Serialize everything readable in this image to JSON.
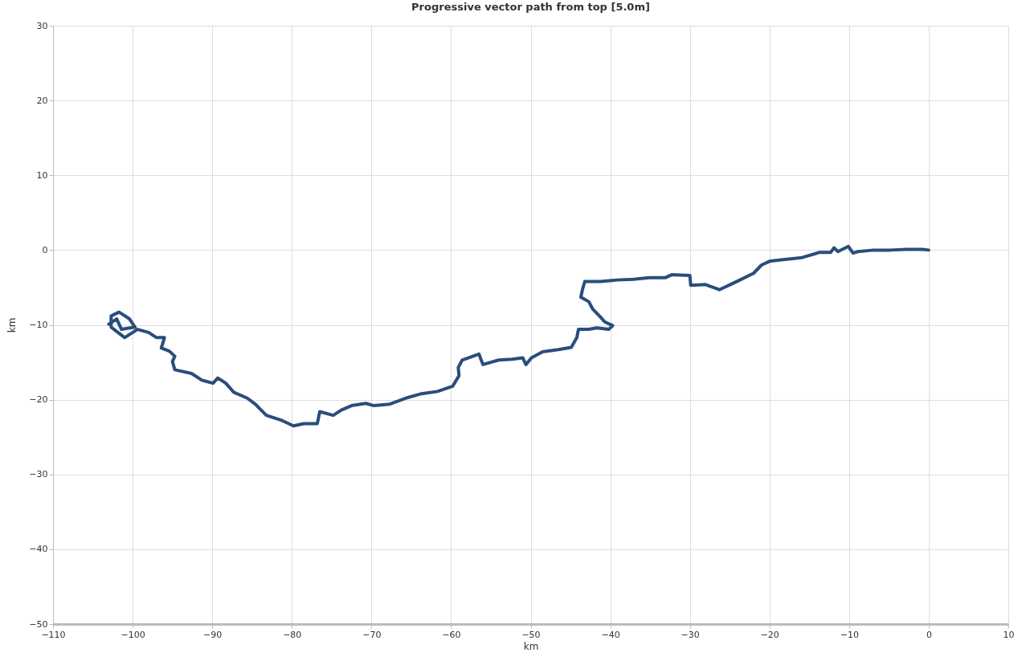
{
  "chart_data": {
    "type": "line",
    "title": "Progressive vector path from top [5.0m]",
    "xlabel": "km",
    "ylabel": "km",
    "xlim": [
      -110,
      10
    ],
    "xticks": [
      -110,
      -100,
      -90,
      -80,
      -70,
      -60,
      -50,
      -40,
      -30,
      -20,
      -10,
      0,
      10
    ],
    "ylim": [
      -50,
      30
    ],
    "yticks": [
      -50,
      -40,
      -30,
      -20,
      -10,
      0,
      10,
      20,
      30
    ],
    "grid": true,
    "series": [
      {
        "color": "#2a4d7c",
        "x": [
          0,
          -0.8,
          -2.8,
          -4.8,
          -6.9,
          -8.9,
          -9.5,
          -10.1,
          -11.4,
          -11.9,
          -12.3,
          -13.7,
          -15.9,
          -18.5,
          -20.0,
          -21.0,
          -22.0,
          -24.5,
          -26.3,
          -28.1,
          -29.9,
          -30.0,
          -32.3,
          -33.1,
          -35.1,
          -37.1,
          -39.2,
          -41.2,
          -43.2,
          -43.5,
          -43.7,
          -42.7,
          -42.2,
          -41.2,
          -40.7,
          -39.7,
          -40.2,
          -41.7,
          -42.7,
          -44.0,
          -44.2,
          -44.9,
          -46.5,
          -48.5,
          -49.9,
          -50.6,
          -51.0,
          -52.3,
          -54.0,
          -56.0,
          -56.5,
          -58.6,
          -59.1,
          -59.0,
          -59.8,
          -61.7,
          -63.7,
          -65.7,
          -67.7,
          -69.7,
          -70.7,
          -72.5,
          -73.8,
          -74.8,
          -76.5,
          -76.8,
          -78.5,
          -79.8,
          -81.2,
          -83.2,
          -84.6,
          -85.6,
          -87.3,
          -88.3,
          -89.3,
          -89.9,
          -91.3,
          -92.6,
          -94.7,
          -95.0,
          -94.7,
          -95.4,
          -96.4,
          -96.0,
          -97.0,
          -98.0,
          -99.4,
          -101.0,
          -102.7,
          -102.7,
          -101.7,
          -100.4,
          -99.7,
          -101.4,
          -102.0,
          -103.0
        ],
        "values": [
          0,
          0.1,
          0.1,
          0,
          0,
          -0.2,
          -0.4,
          0.5,
          -0.2,
          0.3,
          -0.3,
          -0.3,
          -1.0,
          -1.3,
          -1.5,
          -2.0,
          -3.1,
          -4.4,
          -5.3,
          -4.6,
          -4.7,
          -3.4,
          -3.3,
          -3.7,
          -3.7,
          -3.9,
          -4.0,
          -4.2,
          -4.2,
          -5.3,
          -6.3,
          -6.9,
          -7.9,
          -9.0,
          -9.6,
          -10.1,
          -10.6,
          -10.4,
          -10.6,
          -10.6,
          -11.7,
          -13.0,
          -13.3,
          -13.6,
          -14.4,
          -15.3,
          -14.4,
          -14.6,
          -14.7,
          -15.3,
          -13.9,
          -14.7,
          -15.7,
          -16.8,
          -18.2,
          -18.9,
          -19.2,
          -19.8,
          -20.6,
          -20.8,
          -20.5,
          -20.8,
          -21.4,
          -22.1,
          -21.6,
          -23.2,
          -23.2,
          -23.5,
          -22.8,
          -22.1,
          -20.6,
          -19.8,
          -19.0,
          -17.8,
          -17.1,
          -17.8,
          -17.4,
          -16.5,
          -16.0,
          -14.9,
          -14.2,
          -13.5,
          -13.1,
          -11.7,
          -11.7,
          -11.0,
          -10.6,
          -11.7,
          -10.3,
          -8.8,
          -8.3,
          -9.2,
          -10.3,
          -10.6,
          -9.2,
          -9.9
        ]
      }
    ]
  }
}
